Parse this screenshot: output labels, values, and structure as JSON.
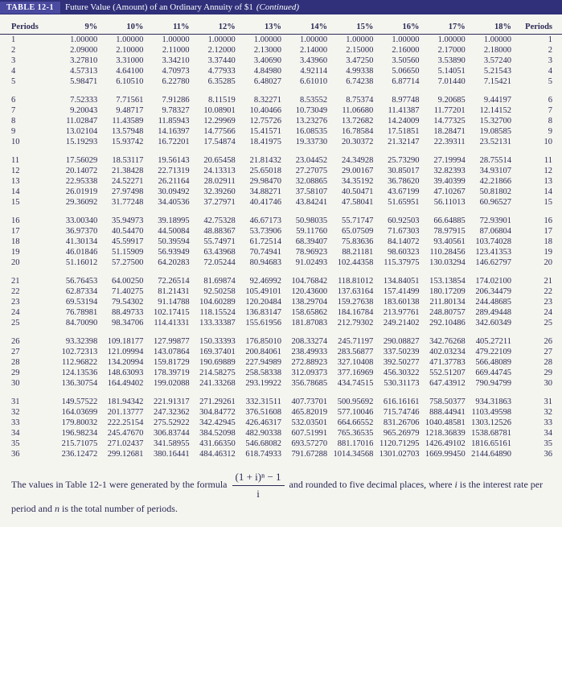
{
  "title": {
    "tab": "TABLE 12-1",
    "text": "Future Value (Amount) of an Ordinary Annuity of $1",
    "cont": "(Continued)"
  },
  "headers": {
    "periods": "Periods",
    "rates": [
      "9%",
      "10%",
      "11%",
      "12%",
      "13%",
      "14%",
      "15%",
      "16%",
      "17%",
      "18%"
    ]
  },
  "rows": [
    {
      "p": 1,
      "v": [
        "1.00000",
        "1.00000",
        "1.00000",
        "1.00000",
        "1.00000",
        "1.00000",
        "1.00000",
        "1.00000",
        "1.00000",
        "1.00000"
      ]
    },
    {
      "p": 2,
      "v": [
        "2.09000",
        "2.10000",
        "2.11000",
        "2.12000",
        "2.13000",
        "2.14000",
        "2.15000",
        "2.16000",
        "2.17000",
        "2.18000"
      ]
    },
    {
      "p": 3,
      "v": [
        "3.27810",
        "3.31000",
        "3.34210",
        "3.37440",
        "3.40690",
        "3.43960",
        "3.47250",
        "3.50560",
        "3.53890",
        "3.57240"
      ]
    },
    {
      "p": 4,
      "v": [
        "4.57313",
        "4.64100",
        "4.70973",
        "4.77933",
        "4.84980",
        "4.92114",
        "4.99338",
        "5.06650",
        "5.14051",
        "5.21543"
      ]
    },
    {
      "p": 5,
      "v": [
        "5.98471",
        "6.10510",
        "6.22780",
        "6.35285",
        "6.48027",
        "6.61010",
        "6.74238",
        "6.87714",
        "7.01440",
        "7.15421"
      ]
    },
    {
      "p": 6,
      "v": [
        "7.52333",
        "7.71561",
        "7.91286",
        "8.11519",
        "8.32271",
        "8.53552",
        "8.75374",
        "8.97748",
        "9.20685",
        "9.44197"
      ]
    },
    {
      "p": 7,
      "v": [
        "9.20043",
        "9.48717",
        "9.78327",
        "10.08901",
        "10.40466",
        "10.73049",
        "11.06680",
        "11.41387",
        "11.77201",
        "12.14152"
      ]
    },
    {
      "p": 8,
      "v": [
        "11.02847",
        "11.43589",
        "11.85943",
        "12.29969",
        "12.75726",
        "13.23276",
        "13.72682",
        "14.24009",
        "14.77325",
        "15.32700"
      ]
    },
    {
      "p": 9,
      "v": [
        "13.02104",
        "13.57948",
        "14.16397",
        "14.77566",
        "15.41571",
        "16.08535",
        "16.78584",
        "17.51851",
        "18.28471",
        "19.08585"
      ]
    },
    {
      "p": 10,
      "v": [
        "15.19293",
        "15.93742",
        "16.72201",
        "17.54874",
        "18.41975",
        "19.33730",
        "20.30372",
        "21.32147",
        "22.39311",
        "23.52131"
      ]
    },
    {
      "p": 11,
      "v": [
        "17.56029",
        "18.53117",
        "19.56143",
        "20.65458",
        "21.81432",
        "23.04452",
        "24.34928",
        "25.73290",
        "27.19994",
        "28.75514"
      ]
    },
    {
      "p": 12,
      "v": [
        "20.14072",
        "21.38428",
        "22.71319",
        "24.13313",
        "25.65018",
        "27.27075",
        "29.00167",
        "30.85017",
        "32.82393",
        "34.93107"
      ]
    },
    {
      "p": 13,
      "v": [
        "22.95338",
        "24.52271",
        "26.21164",
        "28.02911",
        "29.98470",
        "32.08865",
        "34.35192",
        "36.78620",
        "39.40399",
        "42.21866"
      ]
    },
    {
      "p": 14,
      "v": [
        "26.01919",
        "27.97498",
        "30.09492",
        "32.39260",
        "34.88271",
        "37.58107",
        "40.50471",
        "43.67199",
        "47.10267",
        "50.81802"
      ]
    },
    {
      "p": 15,
      "v": [
        "29.36092",
        "31.77248",
        "34.40536",
        "37.27971",
        "40.41746",
        "43.84241",
        "47.58041",
        "51.65951",
        "56.11013",
        "60.96527"
      ]
    },
    {
      "p": 16,
      "v": [
        "33.00340",
        "35.94973",
        "39.18995",
        "42.75328",
        "46.67173",
        "50.98035",
        "55.71747",
        "60.92503",
        "66.64885",
        "72.93901"
      ]
    },
    {
      "p": 17,
      "v": [
        "36.97370",
        "40.54470",
        "44.50084",
        "48.88367",
        "53.73906",
        "59.11760",
        "65.07509",
        "71.67303",
        "78.97915",
        "87.06804"
      ]
    },
    {
      "p": 18,
      "v": [
        "41.30134",
        "45.59917",
        "50.39594",
        "55.74971",
        "61.72514",
        "68.39407",
        "75.83636",
        "84.14072",
        "93.40561",
        "103.74028"
      ]
    },
    {
      "p": 19,
      "v": [
        "46.01846",
        "51.15909",
        "56.93949",
        "63.43968",
        "70.74941",
        "78.96923",
        "88.21181",
        "98.60323",
        "110.28456",
        "123.41353"
      ]
    },
    {
      "p": 20,
      "v": [
        "51.16012",
        "57.27500",
        "64.20283",
        "72.05244",
        "80.94683",
        "91.02493",
        "102.44358",
        "115.37975",
        "130.03294",
        "146.62797"
      ]
    },
    {
      "p": 21,
      "v": [
        "56.76453",
        "64.00250",
        "72.26514",
        "81.69874",
        "92.46992",
        "104.76842",
        "118.81012",
        "134.84051",
        "153.13854",
        "174.02100"
      ]
    },
    {
      "p": 22,
      "v": [
        "62.87334",
        "71.40275",
        "81.21431",
        "92.50258",
        "105.49101",
        "120.43600",
        "137.63164",
        "157.41499",
        "180.17209",
        "206.34479"
      ]
    },
    {
      "p": 23,
      "v": [
        "69.53194",
        "79.54302",
        "91.14788",
        "104.60289",
        "120.20484",
        "138.29704",
        "159.27638",
        "183.60138",
        "211.80134",
        "244.48685"
      ]
    },
    {
      "p": 24,
      "v": [
        "76.78981",
        "88.49733",
        "102.17415",
        "118.15524",
        "136.83147",
        "158.65862",
        "184.16784",
        "213.97761",
        "248.80757",
        "289.49448"
      ]
    },
    {
      "p": 25,
      "v": [
        "84.70090",
        "98.34706",
        "114.41331",
        "133.33387",
        "155.61956",
        "181.87083",
        "212.79302",
        "249.21402",
        "292.10486",
        "342.60349"
      ]
    },
    {
      "p": 26,
      "v": [
        "93.32398",
        "109.18177",
        "127.99877",
        "150.33393",
        "176.85010",
        "208.33274",
        "245.71197",
        "290.08827",
        "342.76268",
        "405.27211"
      ]
    },
    {
      "p": 27,
      "v": [
        "102.72313",
        "121.09994",
        "143.07864",
        "169.37401",
        "200.84061",
        "238.49933",
        "283.56877",
        "337.50239",
        "402.03234",
        "479.22109"
      ]
    },
    {
      "p": 28,
      "v": [
        "112.96822",
        "134.20994",
        "159.81729",
        "190.69889",
        "227.94989",
        "272.88923",
        "327.10408",
        "392.50277",
        "471.37783",
        "566.48089"
      ]
    },
    {
      "p": 29,
      "v": [
        "124.13536",
        "148.63093",
        "178.39719",
        "214.58275",
        "258.58338",
        "312.09373",
        "377.16969",
        "456.30322",
        "552.51207",
        "669.44745"
      ]
    },
    {
      "p": 30,
      "v": [
        "136.30754",
        "164.49402",
        "199.02088",
        "241.33268",
        "293.19922",
        "356.78685",
        "434.74515",
        "530.31173",
        "647.43912",
        "790.94799"
      ]
    },
    {
      "p": 31,
      "v": [
        "149.57522",
        "181.94342",
        "221.91317",
        "271.29261",
        "332.31511",
        "407.73701",
        "500.95692",
        "616.16161",
        "758.50377",
        "934.31863"
      ]
    },
    {
      "p": 32,
      "v": [
        "164.03699",
        "201.13777",
        "247.32362",
        "304.84772",
        "376.51608",
        "465.82019",
        "577.10046",
        "715.74746",
        "888.44941",
        "1103.49598"
      ]
    },
    {
      "p": 33,
      "v": [
        "179.80032",
        "222.25154",
        "275.52922",
        "342.42945",
        "426.46317",
        "532.03501",
        "664.66552",
        "831.26706",
        "1040.48581",
        "1303.12526"
      ]
    },
    {
      "p": 34,
      "v": [
        "196.98234",
        "245.47670",
        "306.83744",
        "384.52098",
        "482.90338",
        "607.51991",
        "765.36535",
        "965.26979",
        "1218.36839",
        "1538.68781"
      ]
    },
    {
      "p": 35,
      "v": [
        "215.71075",
        "271.02437",
        "341.58955",
        "431.66350",
        "546.68082",
        "693.57270",
        "881.17016",
        "1120.71295",
        "1426.49102",
        "1816.65161"
      ]
    },
    {
      "p": 36,
      "v": [
        "236.12472",
        "299.12681",
        "380.16441",
        "484.46312",
        "618.74933",
        "791.67288",
        "1014.34568",
        "1301.02703",
        "1669.99450",
        "2144.64890"
      ]
    }
  ],
  "groupBreaks": [
    5,
    10,
    15,
    20,
    25,
    30
  ],
  "footnote": {
    "pre": "The values in Table 12-1 were generated by the formula",
    "num": "(1 + i)ⁿ − 1",
    "den": "i",
    "post": "and rounded to five decimal places, where",
    "ivar": "i",
    "mid": "is the interest rate per period and",
    "nvar": "n",
    "end": "is the total number of periods."
  }
}
